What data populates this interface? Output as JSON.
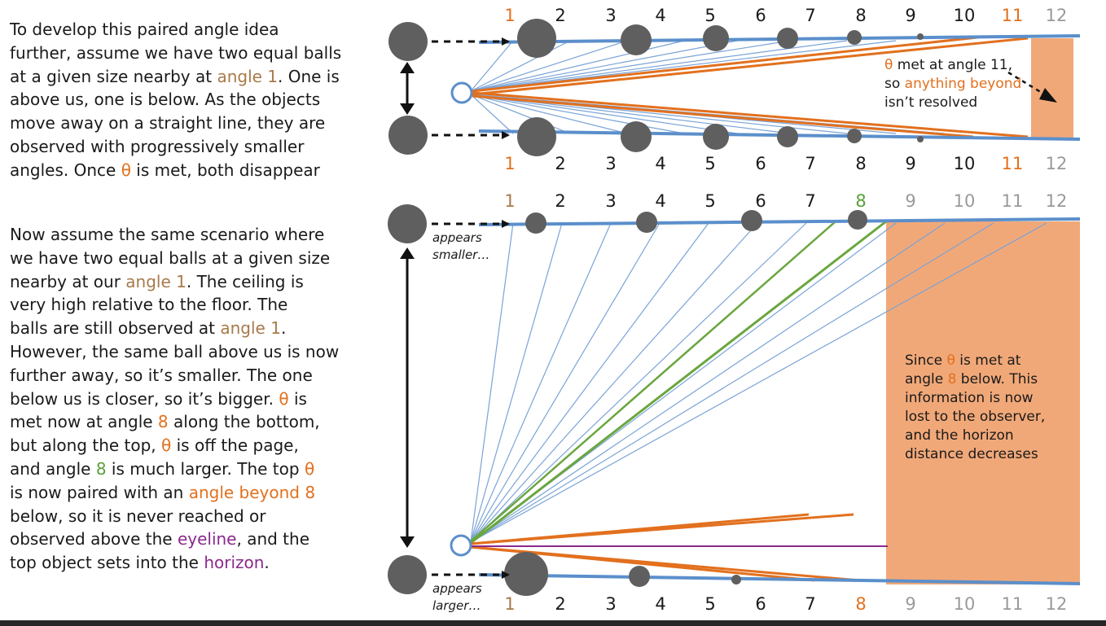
{
  "paragraph_1": [
    [
      {
        "t": "To develop this paired angle idea"
      }
    ],
    [
      {
        "t": "further, assume we have two equal balls"
      }
    ],
    [
      {
        "t": "at a given size nearby at "
      },
      {
        "t": "angle 1",
        "c": "brown"
      },
      {
        "t": ".  One is"
      }
    ],
    [
      {
        "t": "above us, one is below.  As the objects"
      }
    ],
    [
      {
        "t": "move away on a straight line, they are"
      }
    ],
    [
      {
        "t": "observed with progressively smaller"
      }
    ],
    [
      {
        "t": "angles.  Once "
      },
      {
        "t": "θ",
        "c": "orange"
      },
      {
        "t": " is met, both disappear"
      }
    ]
  ],
  "paragraph_2": [
    [
      {
        "t": "Now assume the same scenario where"
      }
    ],
    [
      {
        "t": "we have two equal balls at a given size"
      }
    ],
    [
      {
        "t": "nearby at our "
      },
      {
        "t": "angle 1",
        "c": "brown"
      },
      {
        "t": ".  The ceiling is"
      }
    ],
    [
      {
        "t": "very high relative to the floor.  The"
      }
    ],
    [
      {
        "t": "balls are still observed at "
      },
      {
        "t": "angle 1",
        "c": "brown"
      },
      {
        "t": "."
      }
    ],
    [
      {
        "t": "However, the same ball above us is now"
      }
    ],
    [
      {
        "t": "further away, so it’s smaller.  The one"
      }
    ],
    [
      {
        "t": "below us is closer, so it’s bigger.  "
      },
      {
        "t": "θ",
        "c": "orange"
      },
      {
        "t": " is"
      }
    ],
    [
      {
        "t": "met now at angle "
      },
      {
        "t": "8",
        "c": "orange"
      },
      {
        "t": " along the bottom,"
      }
    ],
    [
      {
        "t": "but along the top, "
      },
      {
        "t": "θ",
        "c": "orange"
      },
      {
        "t": " is off the page,"
      }
    ],
    [
      {
        "t": "and angle "
      },
      {
        "t": "8",
        "c": "green"
      },
      {
        "t": " is much larger.  The top "
      },
      {
        "t": "θ",
        "c": "orange"
      }
    ],
    [
      {
        "t": "is now paired with an "
      },
      {
        "t": "angle beyond 8",
        "c": "orange"
      }
    ],
    [
      {
        "t": "below, so it is never reached or"
      }
    ],
    [
      {
        "t": "observed above the "
      },
      {
        "t": "eyeline",
        "c": "purple"
      },
      {
        "t": ", and the"
      }
    ],
    [
      {
        "t": "top object sets into the "
      },
      {
        "t": "horizon",
        "c": "purple"
      },
      {
        "t": "."
      }
    ]
  ],
  "diagram_top": {
    "numbers_top": [
      "1",
      "2",
      "3",
      "4",
      "5",
      "6",
      "7",
      "8",
      "9",
      "10",
      "11",
      "12"
    ],
    "numbers_top_colors": [
      "#e2701e",
      "#1a1a1a",
      "#1a1a1a",
      "#1a1a1a",
      "#1a1a1a",
      "#1a1a1a",
      "#1a1a1a",
      "#1a1a1a",
      "#1a1a1a",
      "#1a1a1a",
      "#e2701e",
      "#9a9a9a"
    ],
    "numbers_bottom": [
      "1",
      "2",
      "3",
      "4",
      "5",
      "6",
      "7",
      "8",
      "9",
      "10",
      "11",
      "12"
    ],
    "numbers_bottom_colors": [
      "#e2701e",
      "#1a1a1a",
      "#1a1a1a",
      "#1a1a1a",
      "#1a1a1a",
      "#1a1a1a",
      "#1a1a1a",
      "#1a1a1a",
      "#1a1a1a",
      "#1a1a1a",
      "#e2701e",
      "#9a9a9a"
    ],
    "note": [
      [
        {
          "t": "θ",
          "c": "#e2701e"
        },
        {
          "t": " met at angle 11,"
        }
      ],
      [
        {
          "t": "so "
        },
        {
          "t": "anything beyond",
          "c": "#e2701e"
        }
      ],
      [
        {
          "t": "isn’t resolved"
        }
      ]
    ]
  },
  "diagram_bottom": {
    "numbers_top": [
      "1",
      "2",
      "3",
      "4",
      "5",
      "6",
      "7",
      "8",
      "9",
      "10",
      "11",
      "12"
    ],
    "numbers_top_colors": [
      "#a87a4a",
      "#1a1a1a",
      "#1a1a1a",
      "#1a1a1a",
      "#1a1a1a",
      "#1a1a1a",
      "#1a1a1a",
      "#5aa03a",
      "#9a9a9a",
      "#9a9a9a",
      "#9a9a9a",
      "#9a9a9a"
    ],
    "numbers_bottom": [
      "1",
      "2",
      "3",
      "4",
      "5",
      "6",
      "7",
      "8",
      "9",
      "10",
      "11",
      "12"
    ],
    "numbers_bottom_colors": [
      "#a87a4a",
      "#1a1a1a",
      "#1a1a1a",
      "#1a1a1a",
      "#1a1a1a",
      "#1a1a1a",
      "#1a1a1a",
      "#e2701e",
      "#9a9a9a",
      "#9a9a9a",
      "#9a9a9a",
      "#9a9a9a"
    ],
    "label_top": [
      "appears",
      "smaller…"
    ],
    "label_bottom": [
      "appears",
      "larger…"
    ],
    "note": [
      [
        {
          "t": "Since "
        },
        {
          "t": "θ",
          "c": "#e2701e"
        },
        {
          "t": " is met at"
        }
      ],
      [
        {
          "t": "angle "
        },
        {
          "t": "8",
          "c": "#e2701e"
        },
        {
          "t": " below.  This"
        }
      ],
      [
        {
          "t": "information is now"
        }
      ],
      [
        {
          "t": "lost to the observer,"
        }
      ],
      [
        {
          "t": "and the horizon"
        }
      ],
      [
        {
          "t": "distance decreases"
        }
      ]
    ]
  },
  "colors": {
    "line_blue": "#5b8fcb",
    "ray_blue": "#7aa3d6",
    "orange": "#e2701e",
    "fill_orange": "#f1a878",
    "green": "#6aa63e",
    "purple": "#8a2a8c",
    "ball": "#5f5f5f"
  }
}
